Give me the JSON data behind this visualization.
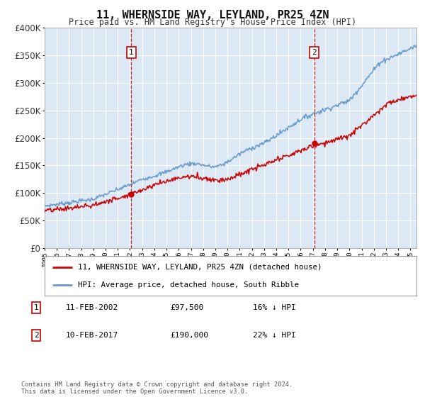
{
  "title": "11, WHERNSIDE WAY, LEYLAND, PR25 4ZN",
  "subtitle": "Price paid vs. HM Land Registry's House Price Index (HPI)",
  "legend_line1": "11, WHERNSIDE WAY, LEYLAND, PR25 4ZN (detached house)",
  "legend_line2": "HPI: Average price, detached house, South Ribble",
  "transaction1_date": "11-FEB-2002",
  "transaction1_price": 97500,
  "transaction1_price_str": "£97,500",
  "transaction1_pct": "16% ↓ HPI",
  "transaction1_year": 2002.115,
  "transaction2_date": "10-FEB-2017",
  "transaction2_price": 190000,
  "transaction2_price_str": "£190,000",
  "transaction2_pct": "22% ↓ HPI",
  "transaction2_year": 2017.111,
  "footer": "Contains HM Land Registry data © Crown copyright and database right 2024.\nThis data is licensed under the Open Government Licence v3.0.",
  "fig_bg": "#ffffff",
  "plot_bg": "#dce9f5",
  "red_color": "#cc0000",
  "blue_color": "#6699cc",
  "grid_color": "#ffffff",
  "ylim": [
    0,
    400000
  ],
  "yticks": [
    0,
    50000,
    100000,
    150000,
    200000,
    250000,
    300000,
    350000,
    400000
  ],
  "xlim_start": 1995,
  "xlim_end": 2025.5
}
